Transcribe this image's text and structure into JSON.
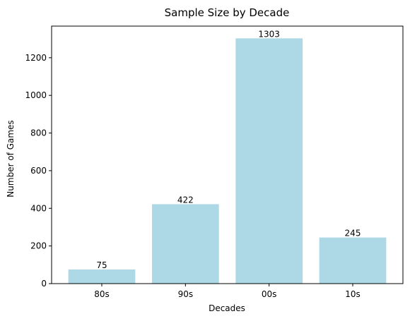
{
  "chart_data": {
    "type": "bar",
    "title": "Sample Size by Decade",
    "xlabel": "Decades",
    "ylabel": "Number of Games",
    "categories": [
      "80s",
      "90s",
      "00s",
      "10s"
    ],
    "values": [
      75,
      422,
      1303,
      245
    ],
    "data_labels": [
      "75",
      "422",
      "1303",
      "245"
    ],
    "ylim": [
      0,
      1368
    ],
    "yticks": [
      0,
      200,
      400,
      600,
      800,
      1000,
      1200
    ],
    "ytick_labels": [
      "0",
      "200",
      "400",
      "600",
      "800",
      "1000",
      "1200"
    ],
    "bar_color": "#add8e6",
    "grid": false,
    "legend": "none"
  }
}
